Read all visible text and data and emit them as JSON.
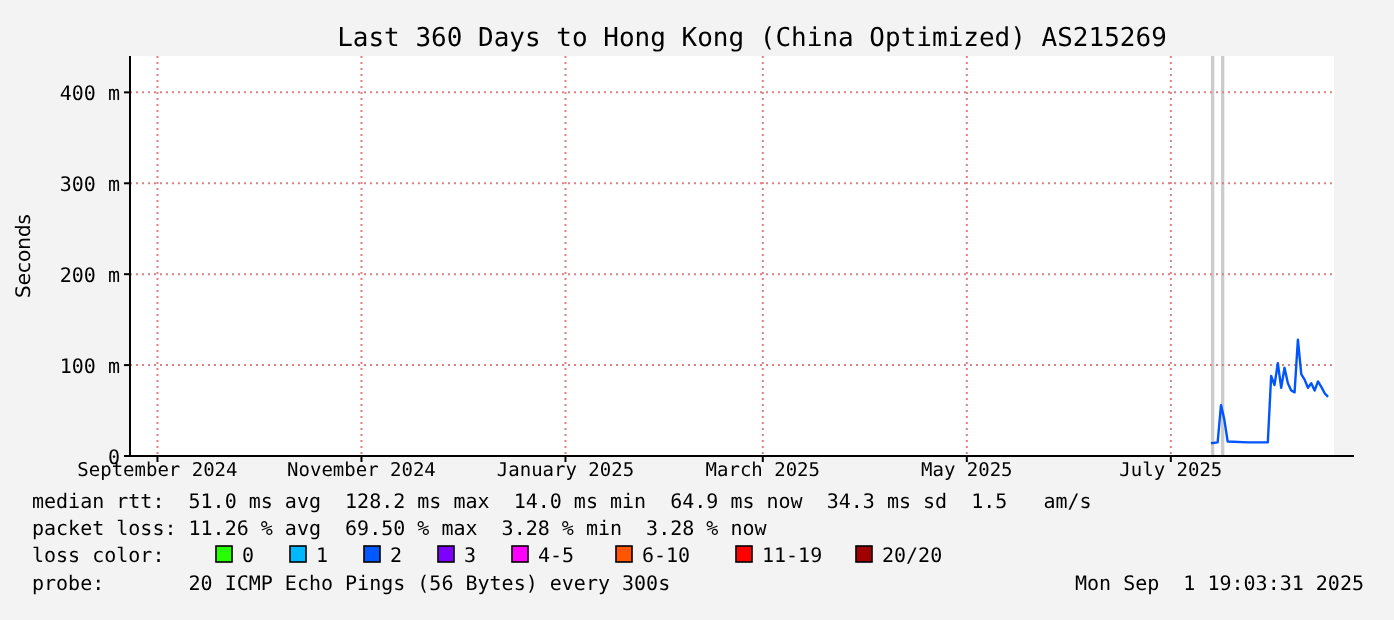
{
  "chart_data": {
    "type": "line",
    "title": "Last 360 Days to Hong Kong (China Optimized) AS215269",
    "ylabel": "Seconds",
    "x": [
      "2025-07-27",
      "2025-07-29",
      "2025-07-30",
      "2025-07-31",
      "2025-08-01",
      "2025-08-07",
      "2025-08-13",
      "2025-08-14",
      "2025-08-15",
      "2025-08-16",
      "2025-08-17",
      "2025-08-18",
      "2025-08-19",
      "2025-08-20",
      "2025-08-21",
      "2025-08-22",
      "2025-08-23",
      "2025-08-24",
      "2025-08-25",
      "2025-08-26",
      "2025-08-27",
      "2025-08-28",
      "2025-08-29",
      "2025-08-30",
      "2025-08-31"
    ],
    "series": [
      {
        "color": "#0055ff",
        "values": [
          14,
          15,
          56,
          40,
          16,
          15,
          15,
          88,
          78,
          102,
          75,
          97,
          80,
          72,
          70,
          128,
          90,
          84,
          75,
          80,
          72,
          82,
          76,
          69,
          65
        ]
      },
      {
        "name": "0",
        "color": "#26ff00",
        "values": [
          null,
          null,
          null,
          null,
          null,
          null,
          null,
          null,
          null,
          null,
          null,
          null,
          null,
          null,
          null,
          null,
          null,
          null,
          null,
          null,
          null,
          null,
          null,
          null,
          null
        ]
      },
      {
        "name": "1",
        "color": "#00b8ff",
        "values": [
          null,
          null,
          null,
          null,
          null,
          null,
          null,
          null,
          null,
          null,
          null,
          null,
          null,
          null,
          null,
          null,
          null,
          null,
          null,
          null,
          null,
          null,
          null,
          null,
          null
        ]
      },
      {
        "name": "2",
        "color": "#0059ff",
        "values": [
          null,
          null,
          null,
          null,
          null,
          null,
          null,
          null,
          null,
          null,
          null,
          null,
          null,
          null,
          null,
          null,
          null,
          null,
          null,
          null,
          null,
          null,
          null,
          null,
          null
        ]
      },
      {
        "name": "3",
        "color": "#7e00ff",
        "values": [
          null,
          null,
          null,
          null,
          null,
          null,
          null,
          null,
          null,
          null,
          null,
          null,
          null,
          null,
          null,
          null,
          null,
          null,
          null,
          null,
          null,
          null,
          null,
          null,
          null
        ]
      },
      {
        "name": "4-5",
        "color": "#ff00ff",
        "values": [
          null,
          null,
          null,
          null,
          null,
          null,
          null,
          null,
          null,
          null,
          null,
          null,
          null,
          null,
          null,
          null,
          null,
          null,
          null,
          null,
          null,
          null,
          null,
          null,
          null
        ]
      },
      {
        "name": "6-10",
        "color": "#ff5500",
        "values": [
          null,
          null,
          null,
          null,
          null,
          null,
          null,
          null,
          null,
          null,
          null,
          null,
          null,
          null,
          null,
          null,
          null,
          null,
          null,
          null,
          null,
          null,
          null,
          null,
          null
        ]
      },
      {
        "name": "11-19",
        "color": "#ff0000",
        "values": [
          null,
          null,
          null,
          null,
          null,
          null,
          null,
          null,
          null,
          null,
          null,
          null,
          null,
          null,
          null,
          null,
          null,
          null,
          null,
          null,
          null,
          null,
          null,
          null,
          null
        ]
      },
      {
        "name": "20/20",
        "color": "#a10000",
        "values": [
          null,
          null,
          null,
          null,
          null,
          null,
          null,
          null,
          null,
          null,
          null,
          null,
          null,
          null,
          null,
          null,
          null,
          null,
          null,
          null,
          null,
          null,
          null,
          null,
          null
        ]
      }
    ],
    "legend_title": "loss color:",
    "legend": "bottom",
    "xlim": [
      "2024-09-06T19:00",
      "2025-09-01T19:00"
    ],
    "xticks": [
      {
        "value": "2024-09-15",
        "label": "September 2024"
      },
      {
        "value": "2024-11-15",
        "label": "November 2024"
      },
      {
        "value": "2025-01-15",
        "label": "January 2025"
      },
      {
        "value": "2025-03-15",
        "label": "March 2025"
      },
      {
        "value": "2025-05-15",
        "label": "May 2025"
      },
      {
        "value": "2025-07-15",
        "label": "July 2025"
      }
    ],
    "ylim": [
      0,
      440
    ],
    "yticks": [
      0,
      {
        "value": 100,
        "label": "100 m"
      },
      {
        "value": 200,
        "label": "200 m"
      },
      {
        "value": 300,
        "label": "300 m"
      },
      {
        "value": 400,
        "label": "400 m"
      }
    ],
    "grid": true,
    "bands": [
      {
        "axis": "x",
        "from": "2025-07-27",
        "to": "2025-07-28",
        "color": "#cccccc"
      },
      {
        "axis": "x",
        "from": "2025-07-30",
        "to": "2025-07-31",
        "color": "#cccccc"
      }
    ],
    "annotations": [
      "median rtt:  51.0 ms avg  128.2 ms max  14.0 ms min  64.9 ms now  34.3 ms sd  1.5   am/s",
      "packet loss: 11.26 % avg  69.50 % max  3.28 % min  3.28 % now",
      "probe:       20 ICMP Echo Pings (56 Bytes) every 300s",
      "Mon Sep  1 19:03:31 2025"
    ]
  }
}
